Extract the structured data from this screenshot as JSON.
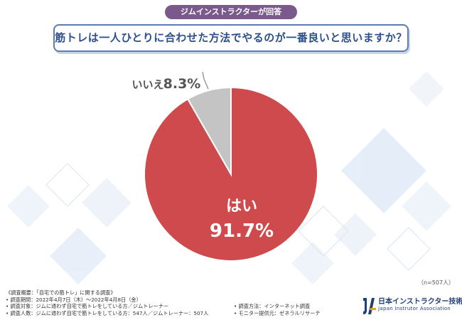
{
  "header": {
    "badge": "ジムインストラクターが回答",
    "question": "筋トレは一人ひとりに合わせた方法でやるのが一番良いと思いますか？"
  },
  "colors": {
    "yes": "#cf4a4c",
    "no": "#c4c4c4",
    "badge": "#7a5a8c",
    "question_border": "#5c7bb5"
  },
  "chart_data": {
    "type": "pie",
    "title": "筋トレは一人ひとりに合わせた方法でやるのが一番良いと思いますか？",
    "slices": [
      {
        "label": "はい",
        "value": 91.7,
        "display": "91.7%"
      },
      {
        "label": "いいえ",
        "value": 8.3,
        "display": "8.3%"
      }
    ]
  },
  "sample_size": "（n=507人）",
  "survey": {
    "heading": "《調査概要：「自宅での筋トレ」に関する調査》",
    "period": "• 調査期間：2022年4月7日（木）～2022年4月8日（金）",
    "method": "• 調査方法：インターネット調査",
    "target": "• 調査対象：ジムに通わず自宅で筋トレをしている方／ジムトレーナー",
    "count": "• 調査人数：ジムに通わず自宅で筋トレをしている方：547人／ジムトレーナー：507人",
    "provider": "• モニター提供元：ゼネラルリサーチ"
  },
  "logo": {
    "name": "日本インストラクター技術協会",
    "sub": "Japan Instrutor Association"
  }
}
